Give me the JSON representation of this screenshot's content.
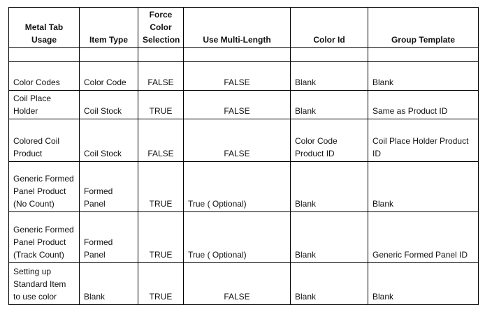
{
  "table": {
    "headers": [
      "Metal Tab Usage",
      "Item Type",
      "Force Color Selection",
      "Use Multi-Length",
      "Color Id",
      "Group Template"
    ],
    "rows": [
      [
        "",
        "",
        "",
        "",
        "",
        ""
      ],
      [
        "Color Codes",
        "Color Code",
        "FALSE",
        "FALSE",
        "Blank",
        "Blank"
      ],
      [
        "Coil Place Holder",
        "Coil Stock",
        "TRUE",
        "FALSE",
        "Blank",
        "Same as Product ID"
      ],
      [
        "Colored Coil Product",
        "Coil Stock",
        "FALSE",
        "FALSE",
        "Color Code Product ID",
        "Coil Place Holder Product ID"
      ],
      [
        "Generic Formed Panel Product (No Count)",
        "Formed Panel",
        "TRUE",
        "True ( Optional)",
        "Blank",
        "Blank"
      ],
      [
        "Generic Formed Panel Product (Track Count)",
        "Formed Panel",
        "TRUE",
        "True ( Optional)",
        "Blank",
        "Generic Formed Panel ID"
      ],
      [
        "Setting up Standard Item to use color",
        "Blank",
        "TRUE",
        "FALSE",
        "Blank",
        "Blank"
      ]
    ]
  }
}
